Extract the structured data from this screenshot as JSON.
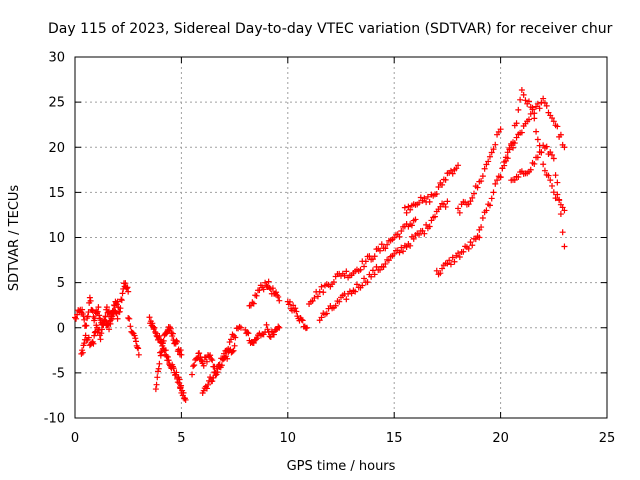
{
  "chart_data": {
    "type": "scatter",
    "title": "Day 115 of 2023, Sidereal Day-to-day VTEC variation (SDTVAR) for receiver chur",
    "xlabel": "GPS time / hours",
    "ylabel": "SDTVAR / TECUs",
    "xlim": [
      0,
      25
    ],
    "ylim": [
      -10,
      30
    ],
    "xticks": [
      "0",
      "5",
      "10",
      "15",
      "20",
      "25"
    ],
    "yticks": [
      "-10",
      "-5",
      "0",
      "5",
      "10",
      "15",
      "20",
      "25",
      "30"
    ],
    "grid": true,
    "marker": "+",
    "series": [
      {
        "name": "SDTVAR",
        "color": "#ff0000",
        "segments": [
          {
            "x": [
              0.0,
              0.3,
              0.5,
              0.7,
              0.9,
              1.1,
              1.3,
              1.5,
              1.7,
              1.9,
              2.1,
              2.3,
              2.5
            ],
            "y": [
              1,
              2,
              0,
              3,
              1,
              2,
              0,
              2,
              1,
              3,
              2,
              5,
              4
            ]
          },
          {
            "x": [
              0.3,
              0.5,
              0.8,
              1.0,
              1.2,
              1.4,
              1.6,
              1.8,
              2.0
            ],
            "y": [
              -3,
              -1,
              -2,
              0,
              -1,
              1,
              0,
              2,
              1
            ]
          },
          {
            "x": [
              2.5,
              2.8,
              3.0
            ],
            "y": [
              1,
              -1,
              -3
            ]
          },
          {
            "x": [
              3.5,
              3.7,
              3.9,
              4.1,
              4.3,
              4.5,
              4.7,
              4.9,
              5.0,
              5.2
            ],
            "y": [
              1,
              0,
              -1,
              -2,
              -3,
              -4,
              -5,
              -6,
              -7,
              -8
            ]
          },
          {
            "x": [
              3.8,
              4.0,
              4.2,
              4.4,
              4.6,
              4.8,
              5.0
            ],
            "y": [
              -7,
              -3,
              -1,
              0,
              -1,
              -2,
              -3
            ]
          },
          {
            "x": [
              5.5,
              5.8,
              6.0,
              6.3,
              6.6,
              6.9,
              7.2,
              7.5
            ],
            "y": [
              -5,
              -3,
              -4,
              -3,
              -5,
              -4,
              -3,
              -2
            ]
          },
          {
            "x": [
              6.0,
              6.3,
              6.6,
              7.0,
              7.4,
              7.8
            ],
            "y": [
              -7,
              -6,
              -5,
              -3,
              -1,
              0
            ]
          },
          {
            "x": [
              8.0,
              8.3,
              8.6,
              9.0,
              9.3,
              9.6
            ],
            "y": [
              0,
              -2,
              -1,
              0,
              -1,
              0
            ]
          },
          {
            "x": [
              8.2,
              8.6,
              9.0,
              9.3,
              9.6
            ],
            "y": [
              2,
              4,
              5,
              4,
              3
            ]
          },
          {
            "x": [
              10.0,
              10.3,
              10.6,
              10.9
            ],
            "y": [
              3,
              2,
              1,
              0
            ]
          },
          {
            "x": [
              11.0,
              11.5,
              12.0,
              12.5,
              13.0,
              13.5,
              14.0,
              14.5,
              15.0,
              15.5,
              16.0
            ],
            "y": [
              3,
              4,
              5,
              6,
              6,
              7,
              8,
              9,
              10,
              11,
              12
            ]
          },
          {
            "x": [
              11.5,
              12.0,
              12.5,
              13.0,
              13.5,
              14.0,
              14.5,
              15.0,
              15.5,
              16.0,
              16.5,
              17.0,
              17.5
            ],
            "y": [
              1,
              2,
              3,
              4,
              5,
              6,
              7,
              8,
              9,
              10,
              11,
              13,
              14
            ]
          },
          {
            "x": [
              15.5,
              16.0,
              16.5,
              17.0,
              17.5,
              18.0
            ],
            "y": [
              13,
              14,
              14,
              15,
              17,
              18
            ]
          },
          {
            "x": [
              17.0,
              17.5,
              18.0,
              18.5,
              19.0
            ],
            "y": [
              6,
              7,
              8,
              9,
              10
            ]
          },
          {
            "x": [
              18.0,
              18.5,
              19.0,
              19.5,
              20.0
            ],
            "y": [
              13,
              14,
              16,
              19,
              22
            ]
          },
          {
            "x": [
              19.0,
              19.5,
              20.0,
              20.5,
              21.0,
              21.5,
              22.0,
              22.5,
              23.0
            ],
            "y": [
              11,
              14,
              17,
              20,
              26,
              24,
              18,
              15,
              13
            ]
          },
          {
            "x": [
              20.0,
              20.5,
              21.0,
              21.5,
              22.0,
              22.5,
              23.0
            ],
            "y": [
              17,
              20,
              22,
              24,
              25,
              23,
              20
            ]
          },
          {
            "x": [
              20.5,
              21.0,
              21.5,
              22.0,
              22.5,
              23.0
            ],
            "y": [
              16,
              17,
              18,
              20,
              19,
              9
            ]
          }
        ]
      }
    ]
  }
}
